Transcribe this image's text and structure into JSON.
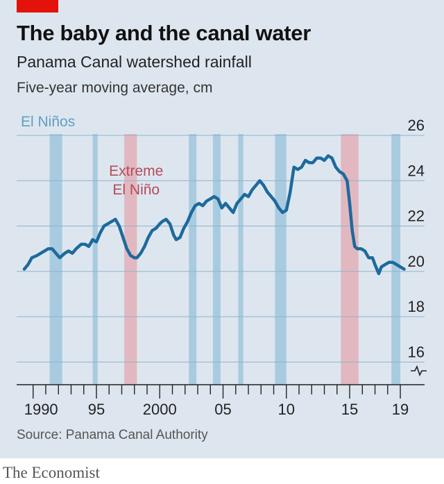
{
  "header": {
    "title": "The baby and the canal water",
    "subtitle": "Panama Canal watershed rainfall",
    "unit": "Five-year moving average, cm"
  },
  "footer": {
    "source": "Source: Panama Canal Authority",
    "brand": "The Economist"
  },
  "colors": {
    "line": "#1d6a9c",
    "el_nino_band": "#a9cbe0",
    "extreme_band": "#e2b8c0",
    "accent": "#e3120b"
  },
  "chart_data": {
    "type": "line",
    "title": "The baby and the canal water",
    "subtitle": "Panama Canal watershed rainfall",
    "ylabel": "Five-year moving average, cm",
    "xlim": [
      1988.7,
      2019.6
    ],
    "ylim": [
      15,
      26
    ],
    "yticks": [
      16,
      18,
      20,
      22,
      24,
      26
    ],
    "y_axis_break": true,
    "xticks": [
      {
        "value": 1990,
        "label": "1990"
      },
      {
        "value": 1995,
        "label": "95"
      },
      {
        "value": 2000,
        "label": "2000"
      },
      {
        "value": 2005,
        "label": "05"
      },
      {
        "value": 2010,
        "label": "10"
      },
      {
        "value": 2015,
        "label": "15"
      },
      {
        "value": 2019,
        "label": "19"
      }
    ],
    "grid": true,
    "band_legend": {
      "el_nino": "El Niños",
      "extreme": "Extreme El Niño"
    },
    "extreme_label_lines": [
      "Extreme",
      "El Niño"
    ],
    "el_nino_periods": [
      [
        1991.3,
        1992.3
      ],
      [
        1994.7,
        1995.1
      ],
      [
        2002.3,
        2002.9
      ],
      [
        2004.2,
        2004.8
      ],
      [
        2006.2,
        2006.6
      ],
      [
        2009.1,
        2010.0
      ],
      [
        2018.3,
        2019.0
      ]
    ],
    "extreme_el_nino_periods": [
      [
        1997.2,
        1998.2
      ],
      [
        2014.3,
        2015.7
      ]
    ],
    "series": [
      {
        "x": [
          1989.3,
          1989.6,
          1989.9,
          1990.3,
          1990.6,
          1990.9,
          1991.2,
          1991.5,
          1991.8,
          1992.1,
          1992.5,
          1992.8,
          1993.1,
          1993.4,
          1993.8,
          1994.1,
          1994.4,
          1994.7,
          1995.0,
          1995.3,
          1995.6,
          1995.9,
          1996.2,
          1996.5,
          1996.8,
          1997.1,
          1997.4,
          1997.7,
          1998.0,
          1998.2,
          1998.5,
          1998.8,
          1999.1,
          1999.4,
          1999.7,
          2000.0,
          2000.2,
          2000.5,
          2000.8,
          2001.1,
          2001.3,
          2001.6,
          2001.9,
          2002.2,
          2002.5,
          2002.8,
          2003.1,
          2003.4,
          2003.7,
          2004.0,
          2004.3,
          2004.6,
          2004.9,
          2005.2,
          2005.5,
          2005.8,
          2006.1,
          2006.4,
          2006.7,
          2007.0,
          2007.3,
          2007.6,
          2007.9,
          2008.2,
          2008.5,
          2008.8,
          2009.1,
          2009.4,
          2009.7,
          2010.0,
          2010.3,
          2010.6,
          2010.9,
          2011.2,
          2011.5,
          2011.8,
          2012.1,
          2012.4,
          2012.7,
          2013.0,
          2013.3,
          2013.6,
          2013.9,
          2014.2,
          2014.5,
          2014.8,
          2015.0,
          2015.2,
          2015.4,
          2015.6,
          2015.9,
          2016.2,
          2016.5,
          2016.8,
          2017.0,
          2017.3,
          2017.5,
          2017.8,
          2018.1,
          2018.4,
          2018.7,
          2019.0,
          2019.3
        ],
        "values": [
          20.1,
          20.3,
          20.6,
          20.7,
          20.8,
          20.9,
          21.0,
          21.0,
          20.8,
          20.6,
          20.8,
          20.9,
          20.8,
          21.0,
          21.2,
          21.2,
          21.1,
          21.4,
          21.3,
          21.7,
          22.0,
          22.1,
          22.2,
          22.3,
          22.0,
          21.5,
          21.0,
          20.7,
          20.6,
          20.6,
          20.8,
          21.1,
          21.5,
          21.8,
          21.9,
          22.1,
          22.2,
          22.3,
          22.1,
          21.6,
          21.4,
          21.5,
          21.9,
          22.2,
          22.6,
          22.9,
          23.0,
          22.9,
          23.1,
          23.2,
          23.3,
          23.2,
          22.8,
          23.0,
          22.8,
          22.6,
          23.0,
          23.2,
          23.4,
          23.3,
          23.6,
          23.8,
          24.0,
          23.8,
          23.5,
          23.3,
          23.1,
          22.8,
          22.6,
          22.7,
          23.5,
          24.6,
          24.5,
          24.6,
          24.9,
          24.8,
          24.8,
          25.0,
          25.0,
          24.9,
          25.1,
          25.0,
          24.6,
          24.4,
          24.3,
          24.0,
          23.0,
          21.8,
          21.1,
          21.0,
          21.0,
          20.9,
          20.6,
          20.6,
          20.3,
          19.9,
          20.2,
          20.3,
          20.4,
          20.4,
          20.3,
          20.2,
          20.1
        ]
      }
    ]
  }
}
